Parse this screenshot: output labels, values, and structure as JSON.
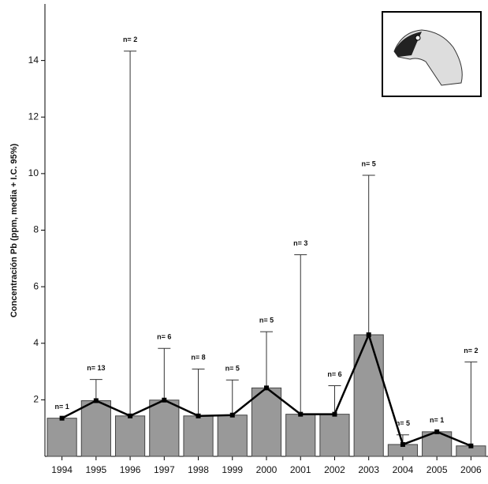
{
  "chart_data": {
    "type": "bar",
    "y_label": "Concentración Pb (ppm, media + I.C. 95%)",
    "categories": [
      "1994",
      "1995",
      "1996",
      "1997",
      "1998",
      "1999",
      "2000",
      "2001",
      "2002",
      "2003",
      "2004",
      "2005",
      "2006"
    ],
    "values": [
      1.35,
      1.97,
      1.43,
      1.99,
      1.43,
      1.46,
      2.42,
      1.49,
      1.49,
      4.3,
      0.42,
      0.87,
      0.37
    ],
    "errors": [
      null,
      0.75,
      12.9,
      1.83,
      1.66,
      1.24,
      1.99,
      5.64,
      1.01,
      5.64,
      0.34,
      null,
      2.97
    ],
    "annotations": [
      "n= 1",
      "n= 13",
      "n= 2",
      "n= 6",
      "n= 8",
      "n= 5",
      "n= 5",
      "n= 3",
      "n= 6",
      "n= 5",
      "n= 5",
      "n= 1",
      "n= 2"
    ],
    "color": "#999999",
    "line_color": "#000000",
    "ylim": [
      0,
      16
    ],
    "yticks": [
      2,
      4,
      6,
      8,
      10,
      12,
      14
    ]
  }
}
